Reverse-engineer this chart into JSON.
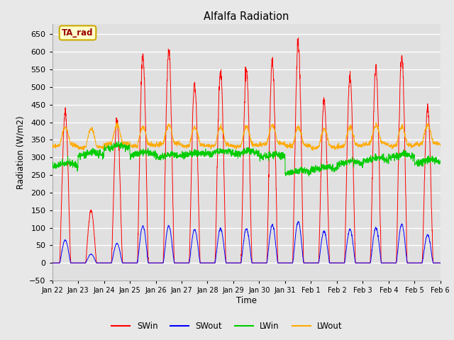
{
  "title": "Alfalfa Radiation",
  "xlabel": "Time",
  "ylabel": "Radiation (W/m2)",
  "ylim": [
    -50,
    680
  ],
  "yticks": [
    -50,
    0,
    50,
    100,
    150,
    200,
    250,
    300,
    350,
    400,
    450,
    500,
    550,
    600,
    650
  ],
  "background_color": "#e8e8e8",
  "plot_bg_color": "#e0e0e0",
  "grid_color": "#ffffff",
  "legend_colors": [
    "#ff0000",
    "#0000ff",
    "#00cc00",
    "#ffaa00"
  ],
  "annotation_text": "TA_rad",
  "annotation_bg": "#ffffcc",
  "annotation_border": "#ccaa00",
  "annotation_text_color": "#990000",
  "start_day": 22,
  "n_days": 15,
  "points_per_day": 144,
  "SWin_peaks": [
    430,
    150,
    405,
    590,
    605,
    510,
    545,
    550,
    570,
    625,
    460,
    530,
    555,
    590,
    440
  ],
  "SWout_peaks": [
    65,
    25,
    55,
    105,
    105,
    95,
    97,
    97,
    108,
    118,
    90,
    95,
    100,
    110,
    80
  ],
  "LWin_base": [
    280,
    310,
    330,
    310,
    305,
    310,
    315,
    315,
    305,
    260,
    270,
    285,
    295,
    305,
    290
  ],
  "LWout_base": [
    335,
    330,
    340,
    335,
    340,
    335,
    335,
    335,
    340,
    335,
    330,
    335,
    340,
    335,
    340
  ]
}
